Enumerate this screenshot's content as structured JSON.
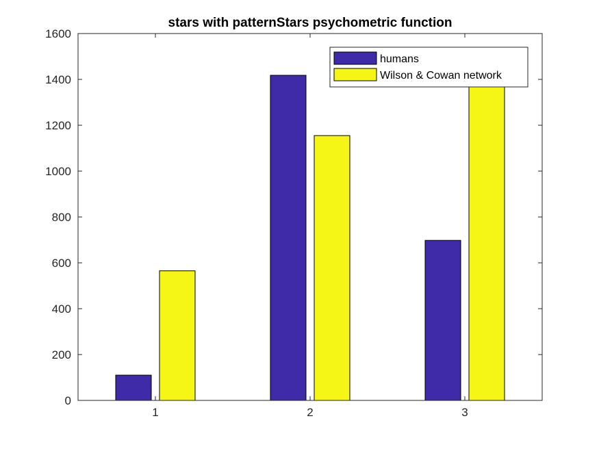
{
  "chart_data": {
    "type": "bar",
    "title": "stars with patternStars psychometric function",
    "xlabel": "",
    "ylabel": "",
    "categories": [
      "1",
      "2",
      "3"
    ],
    "series": [
      {
        "name": "humans",
        "color": "#3f2aa8",
        "values": [
          110,
          1418,
          698
        ]
      },
      {
        "name": "Wilson & Cowan network",
        "color": "#f5f516",
        "values": [
          565,
          1155,
          1460
        ]
      }
    ],
    "ylim": [
      0,
      1600
    ],
    "yticks": [
      0,
      200,
      400,
      600,
      800,
      1000,
      1200,
      1400,
      1600
    ],
    "grid": false,
    "legend_position": "top-right"
  }
}
